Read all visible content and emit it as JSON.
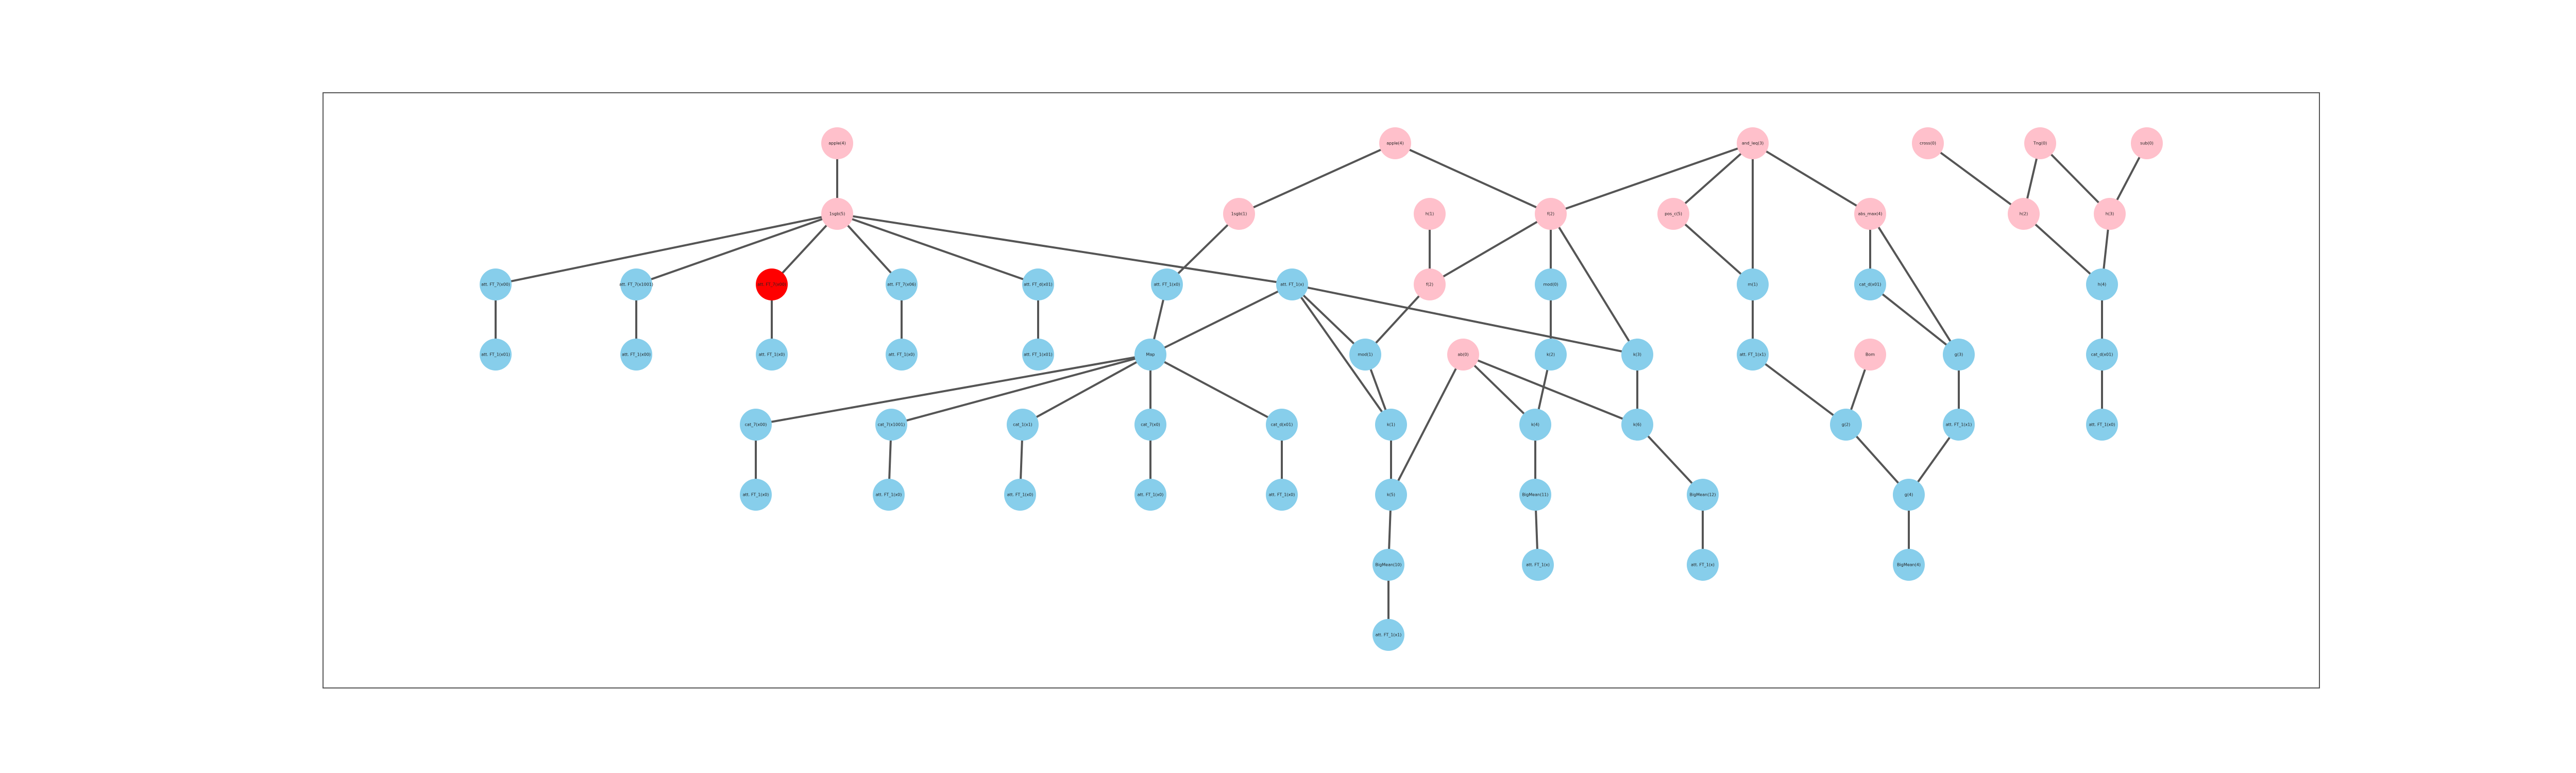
{
  "colors": {
    "pink": "#ffc0cb",
    "blue": "#87ceeb",
    "red": "#ff0000",
    "edge": "#555555",
    "frame": "#555555"
  },
  "nodes": [
    {
      "id": "n_apple",
      "label": "apple(4)",
      "color": "pink"
    },
    {
      "id": "n_hub",
      "label": "1sgb(5)",
      "color": "pink"
    },
    {
      "id": "n_a1",
      "label": "att. FT_7(x00)",
      "color": "blue"
    },
    {
      "id": "n_a2",
      "label": "att. FT_7(x1001)",
      "color": "blue"
    },
    {
      "id": "n_red",
      "label": "att. FT_7(x00)",
      "color": "red"
    },
    {
      "id": "n_a4",
      "label": "att. FT_7(x06)",
      "color": "blue"
    },
    {
      "id": "n_a5",
      "label": "att. FT_d(x01)",
      "color": "blue"
    },
    {
      "id": "n_b1",
      "label": "att. FT_1(x01)",
      "color": "blue"
    },
    {
      "id": "n_b2",
      "label": "att. FT_1(x00)",
      "color": "blue"
    },
    {
      "id": "n_b3",
      "label": "att. FT_1(x0)",
      "color": "blue"
    },
    {
      "id": "n_b4",
      "label": "att. FT_1(x0)",
      "color": "blue"
    },
    {
      "id": "n_b5",
      "label": "att. FT_1(x01)",
      "color": "blue"
    },
    {
      "id": "n_sgb1",
      "label": "1sgb(1)",
      "color": "pink"
    },
    {
      "id": "n_x1",
      "label": "att. FT_1(x0)",
      "color": "blue"
    },
    {
      "id": "n_x2",
      "label": "att. FT_1(x)",
      "color": "blue"
    },
    {
      "id": "n_map",
      "label": "Map",
      "color": "blue"
    },
    {
      "id": "n_c1",
      "label": "cat_7(x00)",
      "color": "blue"
    },
    {
      "id": "n_c2",
      "label": "cat_7(x1001)",
      "color": "blue"
    },
    {
      "id": "n_c3",
      "label": "cat_1(x1)",
      "color": "blue"
    },
    {
      "id": "n_c4",
      "label": "cat_7(x0)",
      "color": "blue"
    },
    {
      "id": "n_c5",
      "label": "cat_d(x01)",
      "color": "blue"
    },
    {
      "id": "n_d1",
      "label": "att. FT_1(x0)",
      "color": "blue"
    },
    {
      "id": "n_d2",
      "label": "att. FT_1(x0)",
      "color": "blue"
    },
    {
      "id": "n_d3",
      "label": "att. FT_1(x0)",
      "color": "blue"
    },
    {
      "id": "n_d4",
      "label": "att. FT_1(x0)",
      "color": "blue"
    },
    {
      "id": "n_d5",
      "label": "att. FT_1(x0)",
      "color": "blue"
    },
    {
      "id": "n_apple2",
      "label": "apple(4)",
      "color": "pink"
    },
    {
      "id": "n_f2",
      "label": "f(2)",
      "color": "pink"
    },
    {
      "id": "n_r1",
      "label": "f(2)",
      "color": "pink"
    },
    {
      "id": "n_h1",
      "label": "h(1)",
      "color": "pink"
    },
    {
      "id": "n_mod0",
      "label": "mod(0)",
      "color": "blue"
    },
    {
      "id": "n_mod1",
      "label": "mod(1)",
      "color": "blue"
    },
    {
      "id": "n_ab",
      "label": "ab(0)",
      "color": "pink"
    },
    {
      "id": "n_k1",
      "label": "k(1)",
      "color": "blue"
    },
    {
      "id": "n_k2",
      "label": "k(2)",
      "color": "blue"
    },
    {
      "id": "n_k3",
      "label": "k(3)",
      "color": "blue"
    },
    {
      "id": "n_k4",
      "label": "k(4)",
      "color": "blue"
    },
    {
      "id": "n_k5",
      "label": "k(5)",
      "color": "blue"
    },
    {
      "id": "n_k6",
      "label": "k(6)",
      "color": "blue"
    },
    {
      "id": "n_e1",
      "label": "BigMean(10)",
      "color": "blue"
    },
    {
      "id": "n_e2",
      "label": "BigMean(11)",
      "color": "blue"
    },
    {
      "id": "n_e3",
      "label": "BigMean(12)",
      "color": "blue"
    },
    {
      "id": "n_y1",
      "label": "att. FT_1(x1)",
      "color": "blue"
    },
    {
      "id": "n_y2",
      "label": "att. FT_1(x)",
      "color": "blue"
    },
    {
      "id": "n_y3",
      "label": "att. FT_1(x)",
      "color": "blue"
    },
    {
      "id": "n_and",
      "label": "and_leq(3)",
      "color": "pink"
    },
    {
      "id": "n_pos",
      "label": "pos_c(5)",
      "color": "pink"
    },
    {
      "id": "n_abs",
      "label": "abs_max(4)",
      "color": "pink"
    },
    {
      "id": "n_m1",
      "label": "m(1)",
      "color": "blue"
    },
    {
      "id": "n_m2",
      "label": "cat_d(x01)",
      "color": "blue"
    },
    {
      "id": "n_att",
      "label": "att. FT_1(x1)",
      "color": "blue"
    },
    {
      "id": "n_bom",
      "label": "Bom",
      "color": "pink"
    },
    {
      "id": "n_g2",
      "label": "g(2)",
      "color": "blue"
    },
    {
      "id": "n_g3",
      "label": "g(3)",
      "color": "blue"
    },
    {
      "id": "n_att2",
      "label": "att. FT_1(x1)",
      "color": "blue"
    },
    {
      "id": "n_g4",
      "label": "g(4)",
      "color": "blue"
    },
    {
      "id": "n_bigm",
      "label": "BigMean(4)",
      "color": "blue"
    },
    {
      "id": "n_cross",
      "label": "cross(0)",
      "color": "pink"
    },
    {
      "id": "n_tng",
      "label": "Tng(0)",
      "color": "pink"
    },
    {
      "id": "n_sub",
      "label": "sub(0)",
      "color": "pink"
    },
    {
      "id": "n_h2",
      "label": "h(2)",
      "color": "pink"
    },
    {
      "id": "n_h3",
      "label": "h(3)",
      "color": "pink"
    },
    {
      "id": "n_h4",
      "label": "h(4)",
      "color": "blue"
    },
    {
      "id": "n_q1",
      "label": "cat_d(x01)",
      "color": "blue"
    },
    {
      "id": "n_q2",
      "label": "att. FT_1(x0)",
      "color": "blue"
    }
  ],
  "edges": [
    [
      "n_apple",
      "n_hub"
    ],
    [
      "n_hub",
      "n_a1"
    ],
    [
      "n_hub",
      "n_a2"
    ],
    [
      "n_hub",
      "n_red"
    ],
    [
      "n_hub",
      "n_a4"
    ],
    [
      "n_hub",
      "n_a5"
    ],
    [
      "n_hub",
      "n_x2"
    ],
    [
      "n_a1",
      "n_b1"
    ],
    [
      "n_a2",
      "n_b2"
    ],
    [
      "n_red",
      "n_b3"
    ],
    [
      "n_a4",
      "n_b4"
    ],
    [
      "n_a5",
      "n_b5"
    ],
    [
      "n_apple2",
      "n_sgb1"
    ],
    [
      "n_apple2",
      "n_f2"
    ],
    [
      "n_sgb1",
      "n_x1"
    ],
    [
      "n_x1",
      "n_map"
    ],
    [
      "n_map",
      "n_c1"
    ],
    [
      "n_map",
      "n_c2"
    ],
    [
      "n_map",
      "n_c3"
    ],
    [
      "n_map",
      "n_c4"
    ],
    [
      "n_map",
      "n_c5"
    ],
    [
      "n_c1",
      "n_d1"
    ],
    [
      "n_c2",
      "n_d2"
    ],
    [
      "n_c3",
      "n_d3"
    ],
    [
      "n_c4",
      "n_d4"
    ],
    [
      "n_c5",
      "n_d5"
    ],
    [
      "n_x2",
      "n_map"
    ],
    [
      "n_x2",
      "n_k1"
    ],
    [
      "n_x2",
      "n_mod1"
    ],
    [
      "n_x2",
      "n_k3"
    ],
    [
      "n_f2",
      "n_r1"
    ],
    [
      "n_f2",
      "n_mod0"
    ],
    [
      "n_f2",
      "n_k3"
    ],
    [
      "n_h1",
      "n_r1"
    ],
    [
      "n_r1",
      "n_mod1"
    ],
    [
      "n_mod1",
      "n_k1"
    ],
    [
      "n_mod0",
      "n_k2"
    ],
    [
      "n_k2",
      "n_k4"
    ],
    [
      "n_ab",
      "n_k4"
    ],
    [
      "n_ab",
      "n_k5"
    ],
    [
      "n_ab",
      "n_k6"
    ],
    [
      "n_k1",
      "n_k5"
    ],
    [
      "n_k5",
      "n_e1"
    ],
    [
      "n_e1",
      "n_y1"
    ],
    [
      "n_k4",
      "n_e2"
    ],
    [
      "n_e2",
      "n_y2"
    ],
    [
      "n_k3",
      "n_k6"
    ],
    [
      "n_k6",
      "n_e3"
    ],
    [
      "n_e3",
      "n_y3"
    ],
    [
      "n_and",
      "n_f2"
    ],
    [
      "n_and",
      "n_pos"
    ],
    [
      "n_and",
      "n_m1"
    ],
    [
      "n_and",
      "n_abs"
    ],
    [
      "n_pos",
      "n_m1"
    ],
    [
      "n_m1",
      "n_att"
    ],
    [
      "n_abs",
      "n_m2"
    ],
    [
      "n_abs",
      "n_g3"
    ],
    [
      "n_m2",
      "n_g3"
    ],
    [
      "n_att",
      "n_g2"
    ],
    [
      "n_bom",
      "n_g2"
    ],
    [
      "n_g2",
      "n_g4"
    ],
    [
      "n_g3",
      "n_att2"
    ],
    [
      "n_att2",
      "n_g4"
    ],
    [
      "n_g4",
      "n_bigm"
    ],
    [
      "n_cross",
      "n_h2"
    ],
    [
      "n_tng",
      "n_h2"
    ],
    [
      "n_tng",
      "n_h3"
    ],
    [
      "n_sub",
      "n_h3"
    ],
    [
      "n_h2",
      "n_h4"
    ],
    [
      "n_h3",
      "n_h4"
    ],
    [
      "n_h4",
      "n_q1"
    ],
    [
      "n_q1",
      "n_q2"
    ]
  ]
}
